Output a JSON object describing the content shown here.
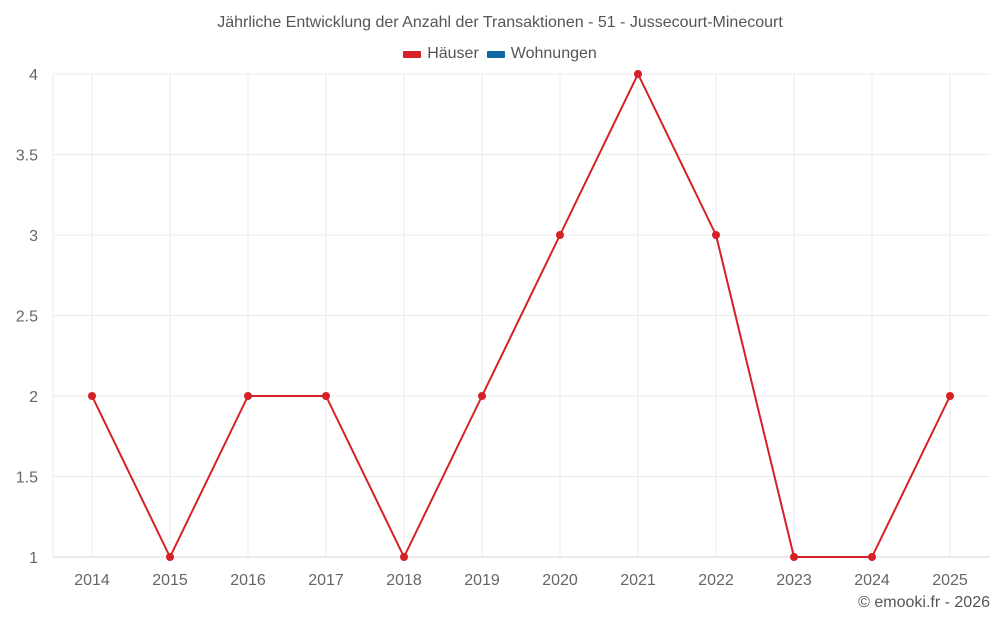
{
  "chart": {
    "title": "Jährliche Entwicklung der Anzahl der Transaktionen - 51 - Jussecourt-Minecourt",
    "legend": [
      {
        "label": "Häuser",
        "color": "#d62027"
      },
      {
        "label": "Wohnungen",
        "color": "#0b6aa2"
      }
    ],
    "credit": "© emooki.fr - 2026"
  },
  "chart_data": {
    "type": "line",
    "title": "Jährliche Entwicklung der Anzahl der Transaktionen - 51 - Jussecourt-Minecourt",
    "xlabel": "",
    "ylabel": "",
    "categories": [
      "2014",
      "2015",
      "2016",
      "2017",
      "2018",
      "2019",
      "2020",
      "2021",
      "2022",
      "2023",
      "2024",
      "2025"
    ],
    "series": [
      {
        "name": "Häuser",
        "color": "#d62027",
        "values": [
          2,
          1,
          2,
          2,
          1,
          2,
          3,
          4,
          3,
          1,
          1,
          2
        ]
      },
      {
        "name": "Wohnungen",
        "color": "#0b6aa2",
        "values": []
      }
    ],
    "yticks": [
      "1",
      "1.5",
      "2",
      "2.5",
      "3",
      "3.5",
      "4"
    ],
    "ylim": [
      1,
      4
    ],
    "grid": true,
    "legend_position": "top"
  }
}
